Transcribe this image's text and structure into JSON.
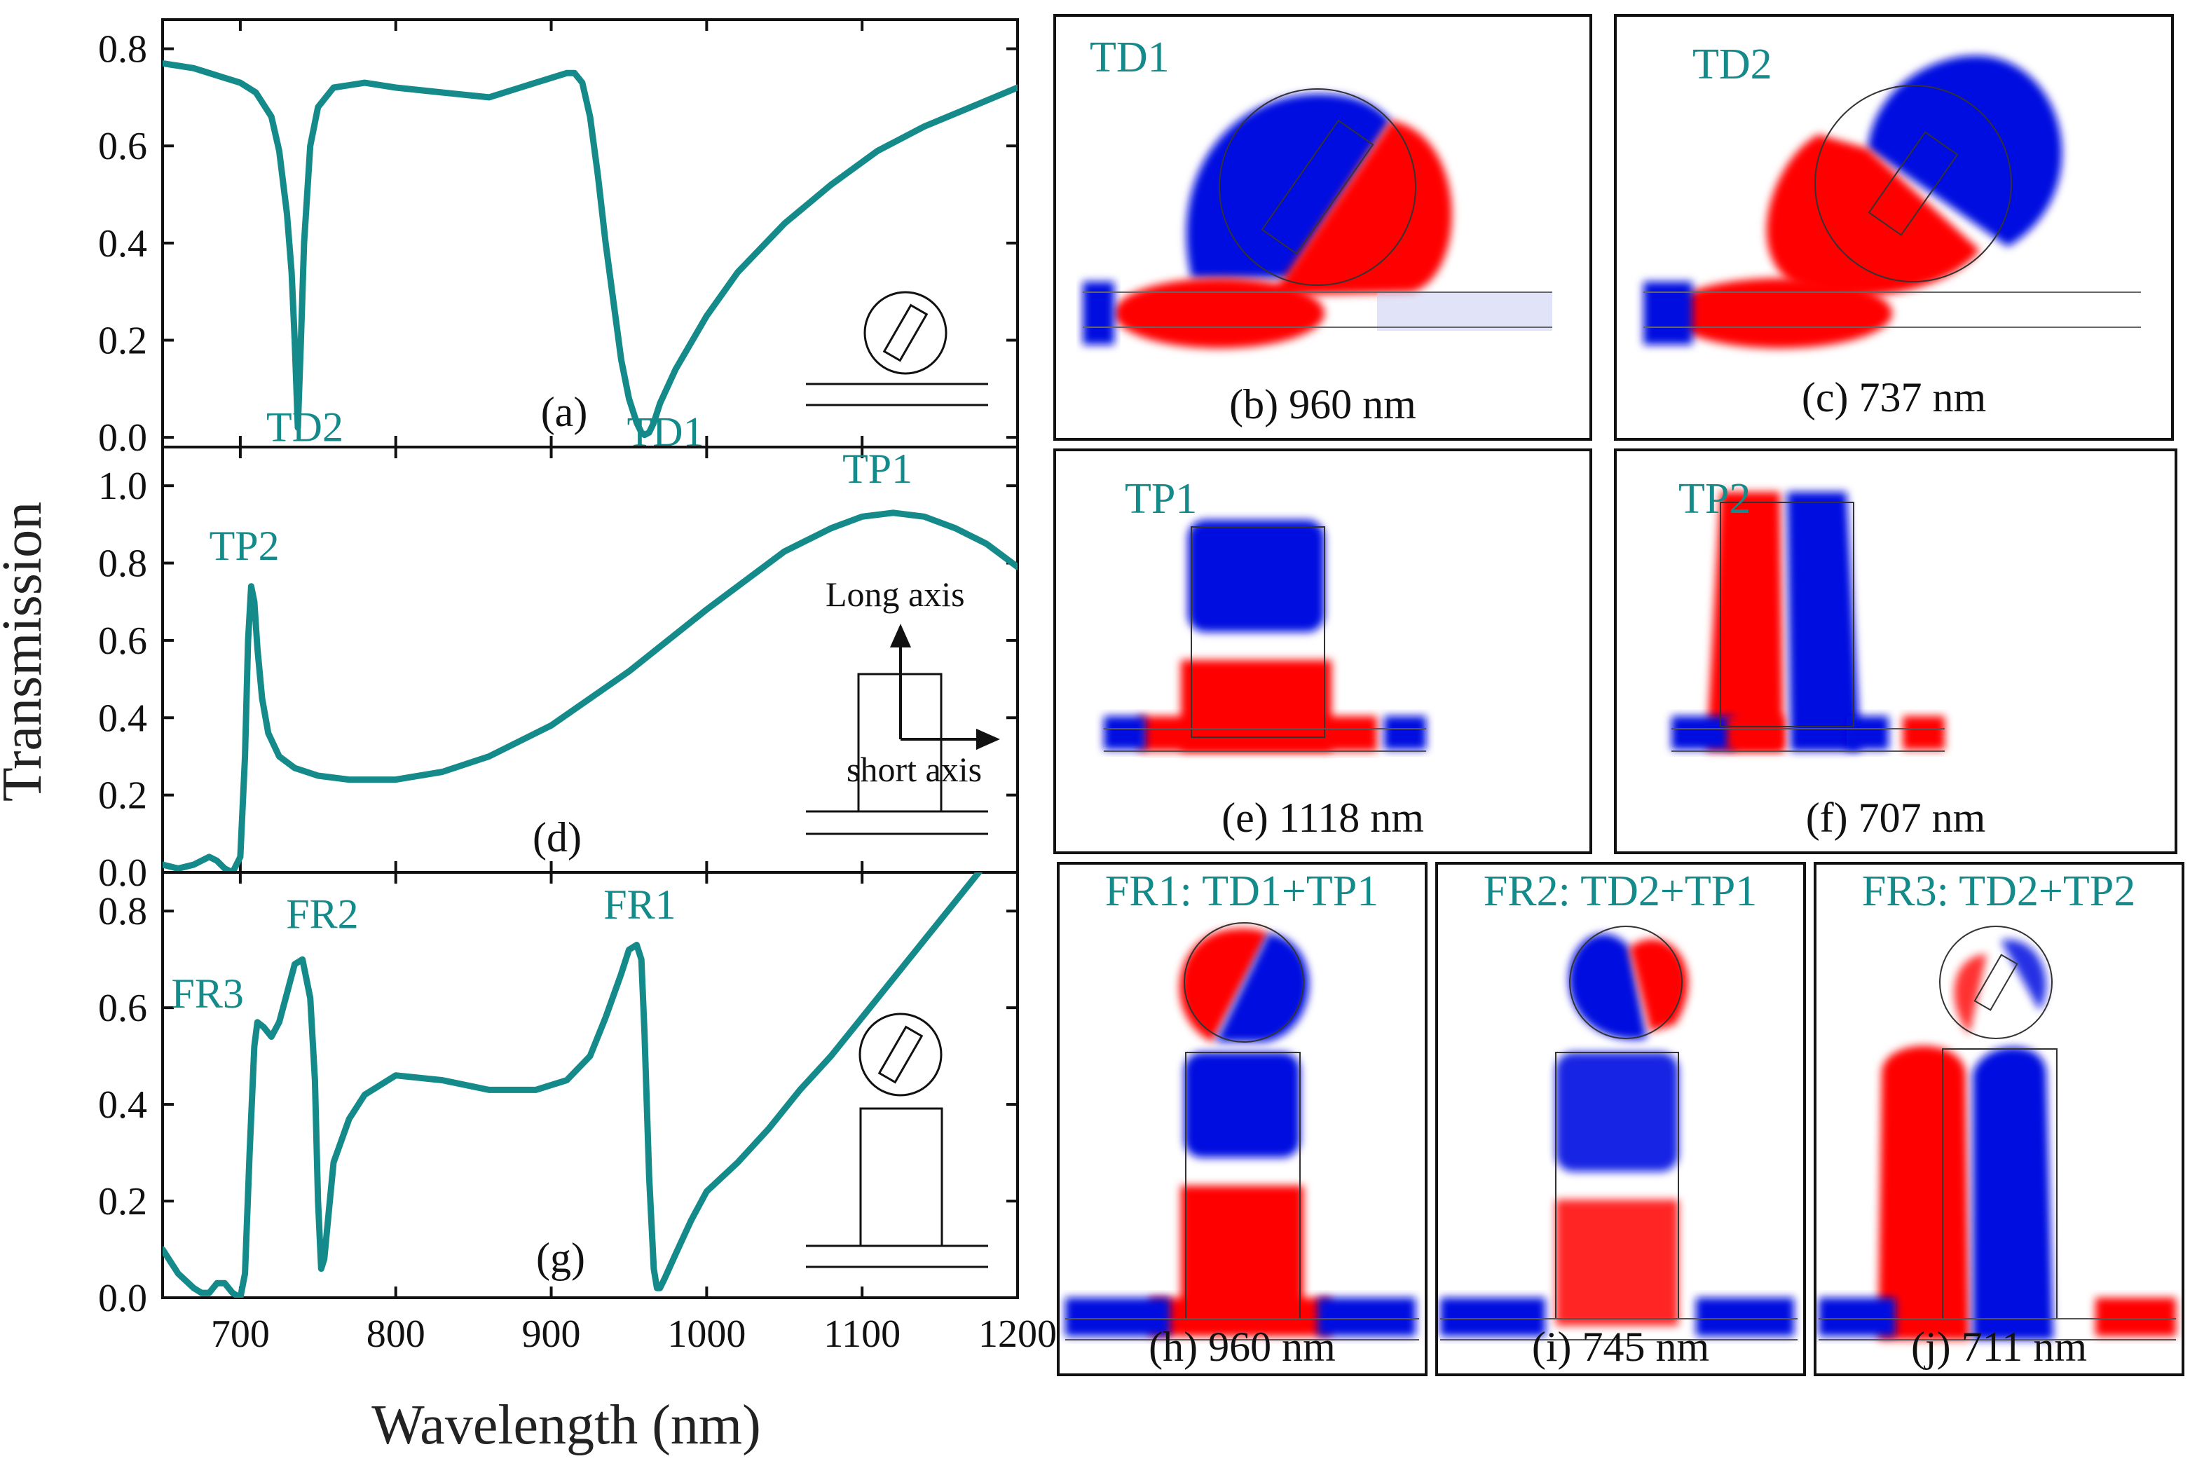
{
  "colors": {
    "curve": "#148a8a",
    "positive": "#ff0000",
    "negative": "#0010e0",
    "frame": "#111111"
  },
  "chart_data": [
    {
      "type": "line",
      "panel": "a",
      "label": "(a)",
      "xlabel": "Wavelength (nm)",
      "ylabel": "Transmission",
      "xlim": [
        650,
        1200
      ],
      "ylim": [
        -0.02,
        0.86
      ],
      "yticks": [
        "0.0",
        "0.2",
        "0.4",
        "0.6",
        "0.8"
      ],
      "ytick_values": [
        0,
        0.2,
        0.4,
        0.6,
        0.8
      ],
      "x": [
        650,
        670,
        690,
        700,
        710,
        720,
        725,
        730,
        733,
        735,
        737,
        739,
        741,
        745,
        750,
        760,
        780,
        800,
        830,
        860,
        880,
        900,
        910,
        915,
        920,
        925,
        930,
        935,
        940,
        945,
        950,
        955,
        958,
        960,
        963,
        966,
        970,
        980,
        1000,
        1020,
        1050,
        1080,
        1110,
        1140,
        1170,
        1200
      ],
      "y": [
        0.77,
        0.76,
        0.74,
        0.73,
        0.71,
        0.66,
        0.59,
        0.46,
        0.34,
        0.2,
        0.02,
        0.2,
        0.4,
        0.6,
        0.68,
        0.72,
        0.73,
        0.72,
        0.71,
        0.7,
        0.72,
        0.74,
        0.75,
        0.75,
        0.73,
        0.66,
        0.54,
        0.4,
        0.28,
        0.16,
        0.08,
        0.03,
        0.01,
        0.005,
        0.01,
        0.03,
        0.07,
        0.14,
        0.25,
        0.34,
        0.44,
        0.52,
        0.59,
        0.64,
        0.68,
        0.72
      ],
      "annotations": [
        {
          "text": "TD2",
          "x": 737,
          "y": 0.05
        },
        {
          "text": "TD1",
          "x": 960,
          "y": 0.04
        }
      ]
    },
    {
      "type": "line",
      "panel": "d",
      "label": "(d)",
      "xlim": [
        650,
        1200
      ],
      "ylim": [
        0,
        1.1
      ],
      "yticks": [
        "0.0",
        "0.2",
        "0.4",
        "0.6",
        "0.8",
        "1.0"
      ],
      "ytick_values": [
        0,
        0.2,
        0.4,
        0.6,
        0.8,
        1.0
      ],
      "x": [
        650,
        660,
        670,
        675,
        680,
        685,
        690,
        695,
        700,
        703,
        705,
        707,
        709,
        711,
        714,
        718,
        725,
        735,
        750,
        770,
        800,
        830,
        860,
        900,
        950,
        1000,
        1050,
        1080,
        1100,
        1120,
        1140,
        1160,
        1180,
        1200
      ],
      "y": [
        0.02,
        0.01,
        0.02,
        0.03,
        0.04,
        0.03,
        0.01,
        0.0,
        0.04,
        0.3,
        0.6,
        0.74,
        0.7,
        0.58,
        0.45,
        0.36,
        0.3,
        0.27,
        0.25,
        0.24,
        0.24,
        0.26,
        0.3,
        0.38,
        0.52,
        0.68,
        0.83,
        0.89,
        0.92,
        0.93,
        0.92,
        0.89,
        0.85,
        0.79
      ],
      "annotations": [
        {
          "text": "TP2",
          "x": 708,
          "y": 0.79
        },
        {
          "text": "TP1",
          "x": 1118,
          "y": 0.98
        }
      ],
      "inset": {
        "long_axis": "Long axis",
        "short_axis": "short axis"
      }
    },
    {
      "type": "line",
      "panel": "g",
      "label": "(g)",
      "xlim": [
        650,
        1200
      ],
      "ylim": [
        0,
        0.88
      ],
      "yticks": [
        "0.0",
        "0.2",
        "0.4",
        "0.6",
        "0.8"
      ],
      "ytick_values": [
        0,
        0.2,
        0.4,
        0.6,
        0.8
      ],
      "xticks": [
        "700",
        "800",
        "900",
        "1000",
        "1100",
        "1200"
      ],
      "xtick_values": [
        700,
        800,
        900,
        1000,
        1100,
        1200
      ],
      "x": [
        650,
        660,
        670,
        675,
        680,
        685,
        690,
        695,
        700,
        703,
        706,
        709,
        711,
        715,
        720,
        725,
        730,
        735,
        740,
        745,
        748,
        750,
        752,
        754,
        757,
        760,
        770,
        780,
        800,
        830,
        860,
        890,
        910,
        925,
        935,
        945,
        950,
        955,
        958,
        960,
        963,
        966,
        968,
        970,
        973,
        980,
        990,
        1000,
        1020,
        1040,
        1060,
        1080,
        1100,
        1120,
        1140,
        1160,
        1170,
        1180
      ],
      "y": [
        0.1,
        0.05,
        0.02,
        0.01,
        0.01,
        0.03,
        0.03,
        0.01,
        0.0,
        0.05,
        0.3,
        0.52,
        0.57,
        0.56,
        0.54,
        0.57,
        0.63,
        0.69,
        0.7,
        0.62,
        0.45,
        0.2,
        0.06,
        0.08,
        0.18,
        0.28,
        0.37,
        0.42,
        0.46,
        0.45,
        0.43,
        0.43,
        0.45,
        0.5,
        0.58,
        0.67,
        0.72,
        0.73,
        0.7,
        0.55,
        0.25,
        0.06,
        0.02,
        0.02,
        0.04,
        0.09,
        0.16,
        0.22,
        0.28,
        0.35,
        0.43,
        0.5,
        0.58,
        0.66,
        0.74,
        0.82,
        0.86,
        0.9
      ],
      "annotations": [
        {
          "text": "FR3",
          "x": 697,
          "y": 0.6
        },
        {
          "text": "FR2",
          "x": 746,
          "y": 0.75
        },
        {
          "text": "FR1",
          "x": 957,
          "y": 0.77
        }
      ]
    }
  ],
  "field_maps": [
    {
      "id": "b",
      "title": "TD1",
      "caption": "(b) 960 nm"
    },
    {
      "id": "c",
      "title": "TD2",
      "caption": "(c) 737 nm"
    },
    {
      "id": "e",
      "title": "TP1",
      "caption": "(e) 1118 nm"
    },
    {
      "id": "f",
      "title": "TP2",
      "caption": "(f) 707 nm"
    },
    {
      "id": "h",
      "title": "FR1: TD1+TP1",
      "caption": "(h) 960 nm"
    },
    {
      "id": "i",
      "title": "FR2: TD2+TP1",
      "caption": "(i) 745 nm"
    },
    {
      "id": "j",
      "title": "FR3: TD2+TP2",
      "caption": "(j) 711 nm"
    }
  ]
}
